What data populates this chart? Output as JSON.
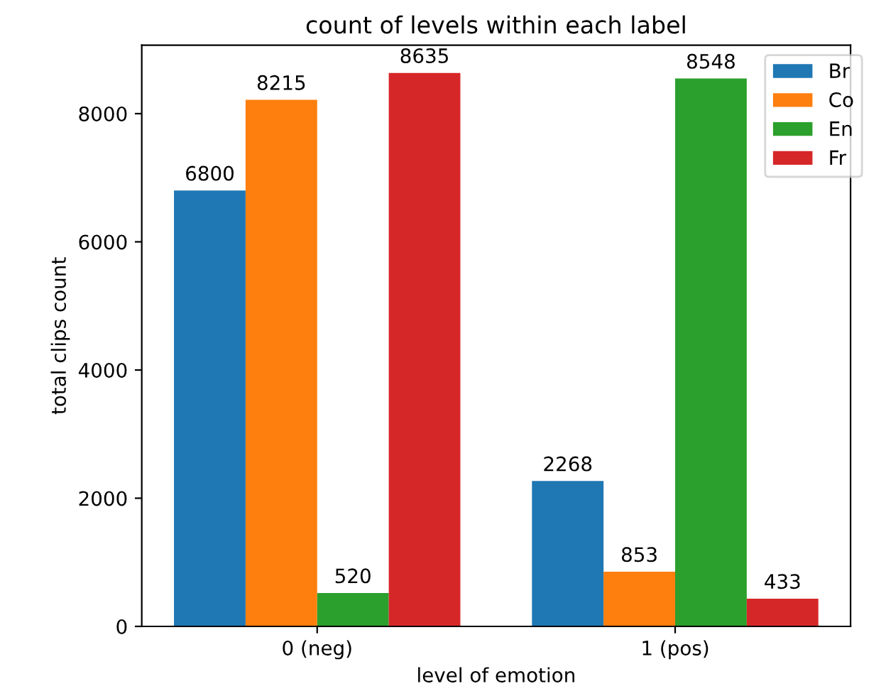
{
  "chart_data": {
    "type": "bar",
    "title": "count of levels within each label",
    "xlabel": "level of emotion",
    "ylabel": "total clips count",
    "categories": [
      "0 (neg)",
      "1 (pos)"
    ],
    "series": [
      {
        "name": "Br",
        "color": "#1f77b4",
        "values": [
          6800,
          2268
        ]
      },
      {
        "name": "Co",
        "color": "#ff7f0e",
        "values": [
          8215,
          853
        ]
      },
      {
        "name": "En",
        "color": "#2ca02c",
        "values": [
          520,
          8548
        ]
      },
      {
        "name": "Fr",
        "color": "#d62728",
        "values": [
          8635,
          433
        ]
      }
    ],
    "ylim": [
      0,
      9067
    ],
    "yticks": [
      0,
      2000,
      4000,
      6000,
      8000
    ],
    "data_labels": true,
    "legend": "top right",
    "grid": false
  }
}
